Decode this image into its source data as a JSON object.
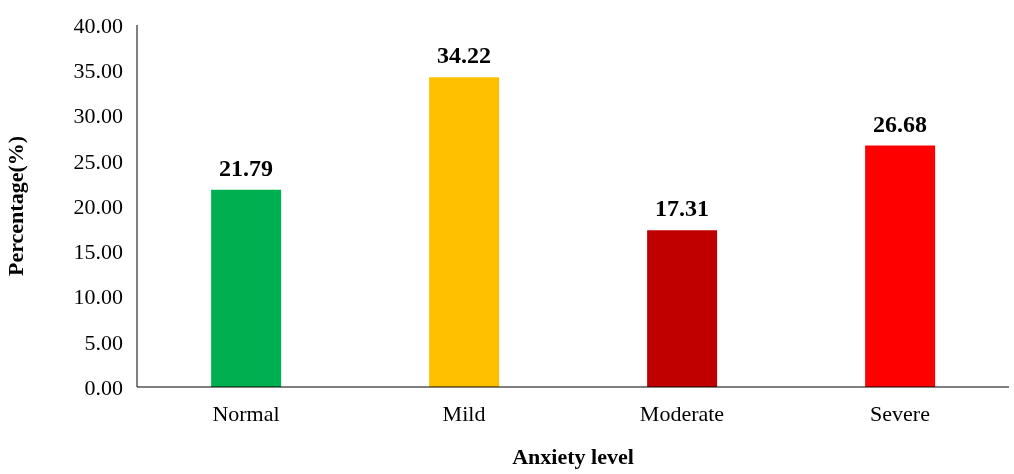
{
  "chart_data": {
    "type": "bar",
    "xlabel": "Anxiety level",
    "ylabel": "Percentage(%)",
    "categories": [
      "Normal",
      "Mild",
      "Moderate",
      "Severe"
    ],
    "values": [
      21.79,
      34.22,
      17.31,
      26.68
    ],
    "colors": [
      "#00b050",
      "#ffc000",
      "#c00000",
      "#ff0000"
    ],
    "ylim": [
      0,
      40
    ],
    "yticks": [
      {
        "value": 0,
        "label": "0.00"
      },
      {
        "value": 5,
        "label": "5.00"
      },
      {
        "value": 10,
        "label": "10.00"
      },
      {
        "value": 15,
        "label": "15.00"
      },
      {
        "value": 20,
        "label": "20.00"
      },
      {
        "value": 25,
        "label": "25.00"
      },
      {
        "value": 30,
        "label": "30.00"
      },
      {
        "value": 35,
        "label": "35.00"
      },
      {
        "value": 40,
        "label": "40.00"
      }
    ],
    "data_labels": true,
    "grid": false,
    "legend": false
  }
}
